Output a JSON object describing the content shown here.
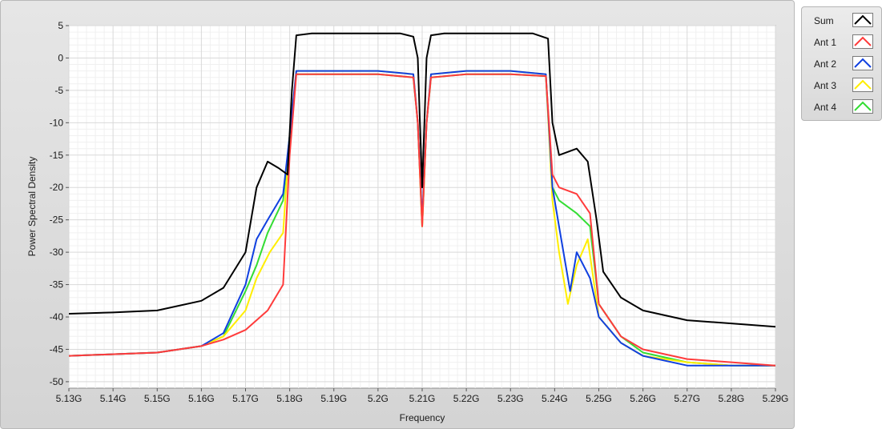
{
  "chart_data": {
    "type": "line",
    "title": "",
    "xlabel": "Frequency",
    "ylabel": "Power Spectral Density",
    "xlim": [
      5.13,
      5.29
    ],
    "ylim": [
      -51,
      5
    ],
    "x_ticks": [
      5.13,
      5.14,
      5.15,
      5.16,
      5.17,
      5.18,
      5.19,
      5.2,
      5.21,
      5.22,
      5.23,
      5.24,
      5.25,
      5.26,
      5.27,
      5.28,
      5.29
    ],
    "x_tick_labels": [
      "5.13G",
      "5.14G",
      "5.15G",
      "5.16G",
      "5.17G",
      "5.18G",
      "5.19G",
      "5.2G",
      "5.21G",
      "5.22G",
      "5.23G",
      "5.24G",
      "5.25G",
      "5.26G",
      "5.27G",
      "5.28G",
      "5.29G"
    ],
    "y_ticks": [
      5,
      0,
      -5,
      -10,
      -15,
      -20,
      -25,
      -30,
      -35,
      -40,
      -45,
      -50
    ],
    "y_tick_labels": [
      "5",
      "0",
      "-5",
      "-10",
      "-15",
      "-20",
      "-25",
      "-30",
      "-35",
      "-40",
      "-45",
      "-50"
    ],
    "grid": true,
    "legend_position": "right",
    "series": [
      {
        "name": "Sum",
        "color": "#000000",
        "x": [
          5.13,
          5.14,
          5.15,
          5.16,
          5.165,
          5.17,
          5.1725,
          5.175,
          5.1775,
          5.1795,
          5.1805,
          5.1815,
          5.185,
          5.19,
          5.2,
          5.205,
          5.208,
          5.209,
          5.2095,
          5.21,
          5.2105,
          5.211,
          5.212,
          5.215,
          5.22,
          5.23,
          5.235,
          5.2385,
          5.2395,
          5.241,
          5.245,
          5.2475,
          5.2495,
          5.251,
          5.255,
          5.26,
          5.27,
          5.28,
          5.29
        ],
        "y": [
          -39.5,
          -39.3,
          -39,
          -37.5,
          -35.5,
          -30,
          -20,
          -16,
          -17,
          -18,
          -5,
          3.5,
          3.8,
          3.8,
          3.8,
          3.8,
          3.3,
          0,
          -10,
          -20,
          -10,
          0,
          3.5,
          3.8,
          3.8,
          3.8,
          3.8,
          3,
          -10,
          -15,
          -14,
          -16,
          -25,
          -33,
          -37,
          -39,
          -40.5,
          -41,
          -41.5
        ]
      },
      {
        "name": "Ant 1",
        "color": "#ff3b3b",
        "x": [
          5.13,
          5.15,
          5.16,
          5.165,
          5.17,
          5.175,
          5.1785,
          5.18,
          5.1815,
          5.185,
          5.19,
          5.2,
          5.208,
          5.209,
          5.21,
          5.211,
          5.212,
          5.22,
          5.23,
          5.238,
          5.2395,
          5.241,
          5.245,
          5.248,
          5.25,
          5.255,
          5.26,
          5.27,
          5.28,
          5.29
        ],
        "y": [
          -46,
          -45.5,
          -44.5,
          -43.5,
          -42,
          -39,
          -35,
          -15,
          -2.5,
          -2.5,
          -2.5,
          -2.5,
          -3,
          -10,
          -26,
          -10,
          -3,
          -2.5,
          -2.5,
          -2.8,
          -18,
          -20,
          -21,
          -24,
          -38,
          -43,
          -45,
          -46.5,
          -47,
          -47.5
        ]
      },
      {
        "name": "Ant 2",
        "color": "#1040e0",
        "x": [
          5.13,
          5.15,
          5.16,
          5.165,
          5.17,
          5.1725,
          5.175,
          5.1785,
          5.18,
          5.1815,
          5.185,
          5.19,
          5.2,
          5.208,
          5.209,
          5.21,
          5.211,
          5.212,
          5.22,
          5.23,
          5.238,
          5.2395,
          5.2415,
          5.2435,
          5.245,
          5.248,
          5.25,
          5.255,
          5.26,
          5.27,
          5.28,
          5.29
        ],
        "y": [
          -46,
          -45.5,
          -44.5,
          -42.5,
          -35,
          -28,
          -25,
          -21,
          -12,
          -2,
          -2,
          -2,
          -2,
          -2.5,
          -10,
          -25,
          -10,
          -2.5,
          -2,
          -2,
          -2.5,
          -20,
          -28,
          -36,
          -30,
          -34,
          -40,
          -44,
          -46,
          -47.5,
          -47.5,
          -47.5
        ]
      },
      {
        "name": "Ant 3",
        "color": "#ffee00",
        "x": [
          5.13,
          5.15,
          5.16,
          5.165,
          5.17,
          5.1725,
          5.1755,
          5.1785,
          5.18,
          5.1815,
          5.185,
          5.19,
          5.2,
          5.208,
          5.209,
          5.21,
          5.211,
          5.212,
          5.22,
          5.23,
          5.238,
          5.2395,
          5.241,
          5.243,
          5.245,
          5.2475,
          5.25,
          5.255,
          5.26,
          5.27,
          5.28,
          5.29
        ],
        "y": [
          -46,
          -45.5,
          -44.5,
          -43,
          -39,
          -34,
          -30,
          -27,
          -12,
          -2,
          -2,
          -2,
          -2,
          -2.5,
          -10,
          -26,
          -10,
          -2.5,
          -2,
          -2,
          -2.5,
          -22,
          -30,
          -38,
          -32,
          -28,
          -40,
          -44,
          -46,
          -47,
          -47.5,
          -47.5
        ]
      },
      {
        "name": "Ant 4",
        "color": "#33dd33",
        "x": [
          5.13,
          5.15,
          5.16,
          5.165,
          5.17,
          5.1725,
          5.175,
          5.1785,
          5.18,
          5.1815,
          5.185,
          5.19,
          5.2,
          5.208,
          5.209,
          5.21,
          5.211,
          5.212,
          5.22,
          5.23,
          5.238,
          5.2395,
          5.241,
          5.245,
          5.248,
          5.25,
          5.255,
          5.26,
          5.27,
          5.28,
          5.29
        ],
        "y": [
          -46,
          -45.5,
          -44.5,
          -43,
          -36,
          -32,
          -27,
          -22,
          -12,
          -2.5,
          -2.5,
          -2.5,
          -2.5,
          -3,
          -10,
          -26,
          -10,
          -3,
          -2.5,
          -2.5,
          -2.8,
          -20,
          -22,
          -24,
          -26,
          -38,
          -43,
          -45.5,
          -47,
          -47.5,
          -47.5
        ]
      }
    ]
  }
}
